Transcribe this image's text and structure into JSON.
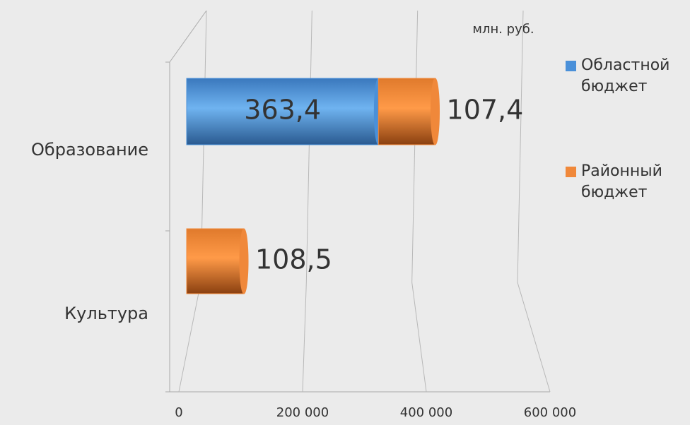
{
  "chart_data": {
    "type": "bar3d",
    "stacked": true,
    "orientation": "horizontal",
    "unit_label": "млн. руб.",
    "categories": [
      "Образование",
      "Культура"
    ],
    "series": [
      {
        "name": "Областной бюджет",
        "color": "#4a90d9",
        "values": [
          363400,
          null
        ],
        "value_labels": [
          "363,4",
          null
        ]
      },
      {
        "name": "Районный бюджет",
        "color": "#f0883a",
        "values": [
          107400,
          108500
        ],
        "value_labels": [
          "107,4",
          "108,5"
        ]
      }
    ],
    "xlim": [
      0,
      600000
    ],
    "xticks": [
      0,
      {
        "value": 200000,
        "label": "200 000"
      },
      {
        "value": 400000,
        "label": "400 000"
      },
      {
        "value": 600000,
        "label": "600 000"
      }
    ],
    "grid": true,
    "legend": "right"
  }
}
